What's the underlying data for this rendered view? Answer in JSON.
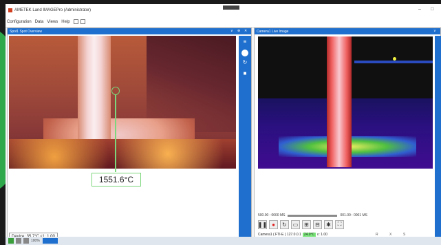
{
  "window": {
    "title": "AMETEK Land IMAGEPro (Administrator)",
    "minimize": "–",
    "maximize": "□"
  },
  "menu": {
    "items": [
      "Configuration",
      "Data",
      "Views",
      "Help"
    ]
  },
  "left_panel": {
    "title": "Spot1 Spot Overview",
    "controls": [
      "∨",
      "⊕",
      "✕"
    ],
    "spot_temperature": "1551.6°C",
    "device_status": "Device: 35.7°C ε1: 1.00"
  },
  "right_panel": {
    "title": "Camera1 Live Image",
    "controls": [
      "∨"
    ],
    "timeline": {
      "start": "500.00 : 0000 MS",
      "mid": "001.00 : 0001 MS"
    },
    "camera_status": {
      "prefix": "Camera1 (  FTI-E ) 127.0.0.1",
      "temperature": "24.0°C",
      "emissivity": "ε: 1.00"
    },
    "extra": [
      "R",
      "X",
      "S"
    ]
  },
  "taskbar": {
    "labels": [
      "100%"
    ]
  },
  "colors": {
    "accent": "#1e6fce",
    "spot_marker": "#7cd67c",
    "record": "#e02020"
  }
}
